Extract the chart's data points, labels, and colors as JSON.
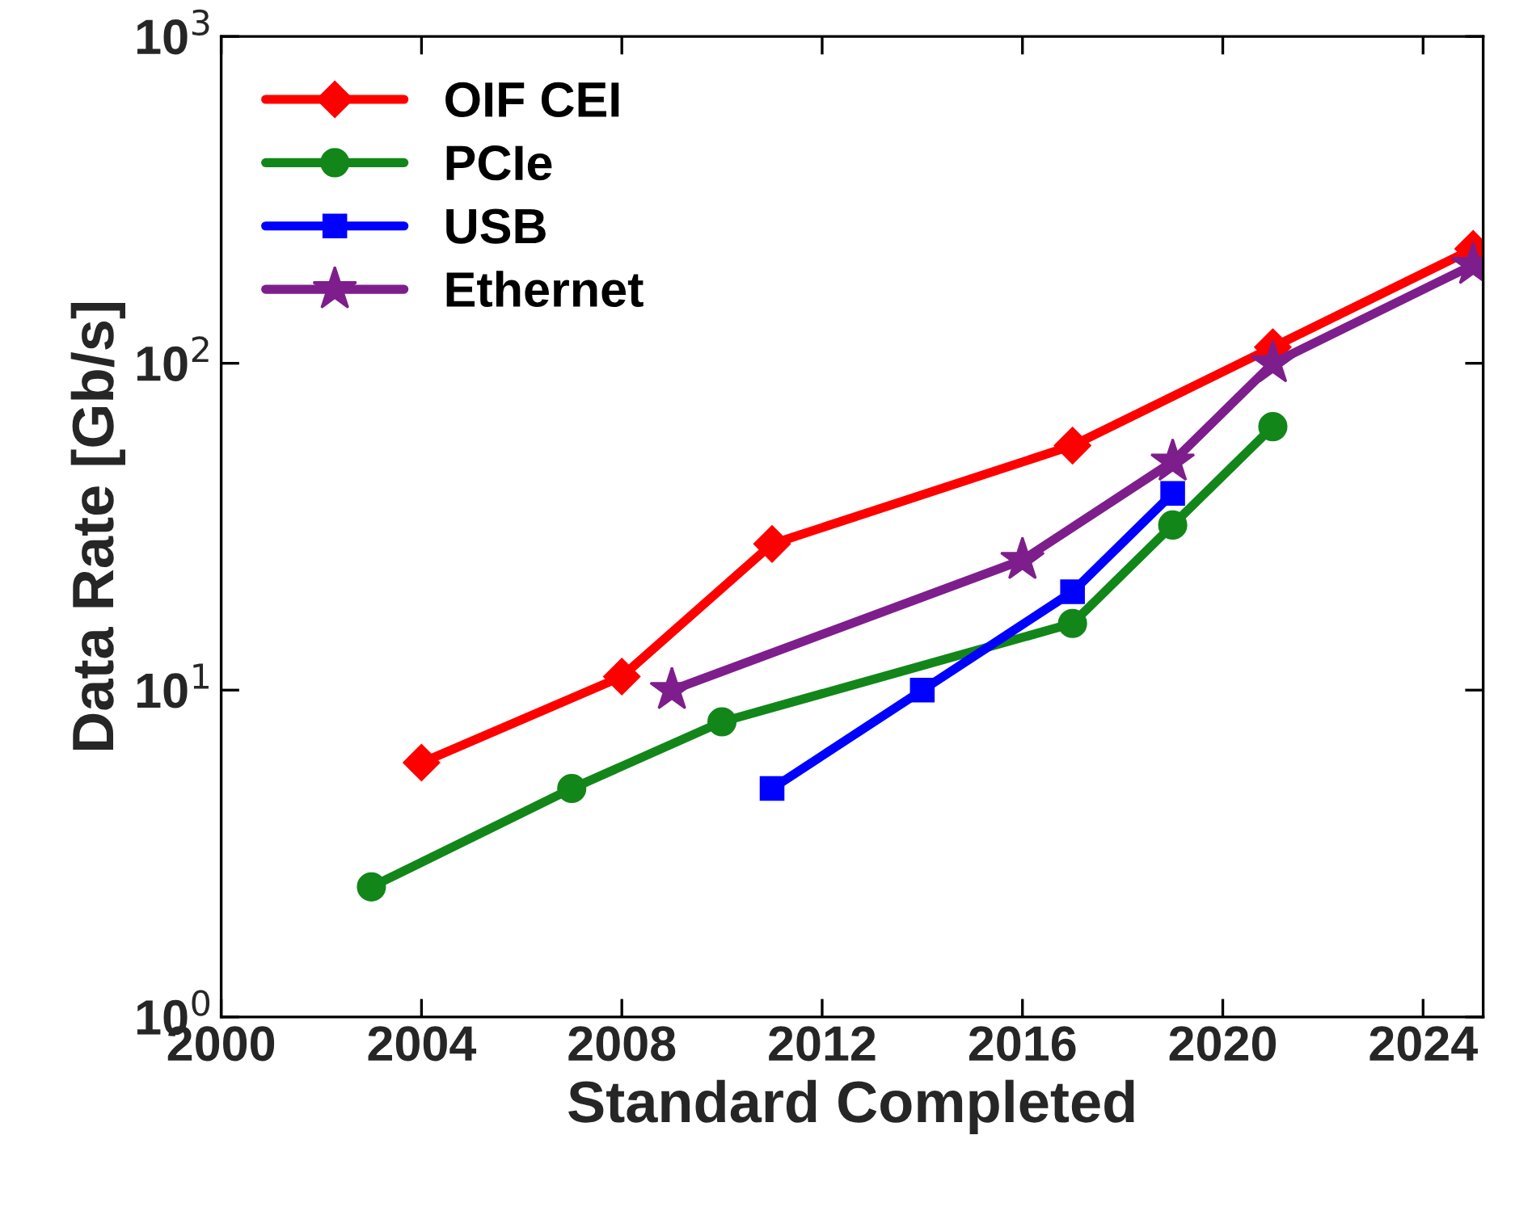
{
  "chart_data": {
    "type": "line",
    "xlabel": "Standard Completed",
    "ylabel": "Data Rate [Gb/s]",
    "log": "y",
    "xlim": [
      2000,
      2025.2
    ],
    "xticks": [
      2000,
      2004,
      2008,
      2012,
      2016,
      2020,
      2024
    ],
    "ylim": [
      1,
      1000
    ],
    "yticks": [
      {
        "value": 1,
        "label": "10$^{0}$"
      },
      {
        "value": 10,
        "label": "10$^{1}$"
      },
      {
        "value": 100,
        "label": "10$^{2}$"
      },
      {
        "value": 1000,
        "label": "10$^{3}$"
      }
    ],
    "grid": false,
    "legend": "top left",
    "line_style": "solid",
    "series": [
      {
        "name": "OIF CEI",
        "color": "#ff0000",
        "marker": "diamond",
        "x": [
          2004,
          2008,
          2011,
          2017,
          2021,
          2025
        ],
        "values": [
          6,
          11,
          28,
          56,
          112,
          224
        ]
      },
      {
        "name": "PCIe",
        "color": "#13861a",
        "marker": "circle",
        "x": [
          2003,
          2007,
          2010,
          2017,
          2019,
          2021
        ],
        "values": [
          2.5,
          5,
          8,
          16,
          32,
          64
        ]
      },
      {
        "name": "USB",
        "color": "#0000ff",
        "marker": "square",
        "x": [
          2011,
          2014,
          2017,
          2019
        ],
        "values": [
          5,
          10,
          20,
          40
        ]
      },
      {
        "name": "Ethernet",
        "color": "#7e1e8c",
        "marker": "star",
        "x": [
          2009,
          2016,
          2019,
          2021,
          2025
        ],
        "values": [
          10,
          25,
          50,
          100,
          200
        ]
      }
    ]
  }
}
